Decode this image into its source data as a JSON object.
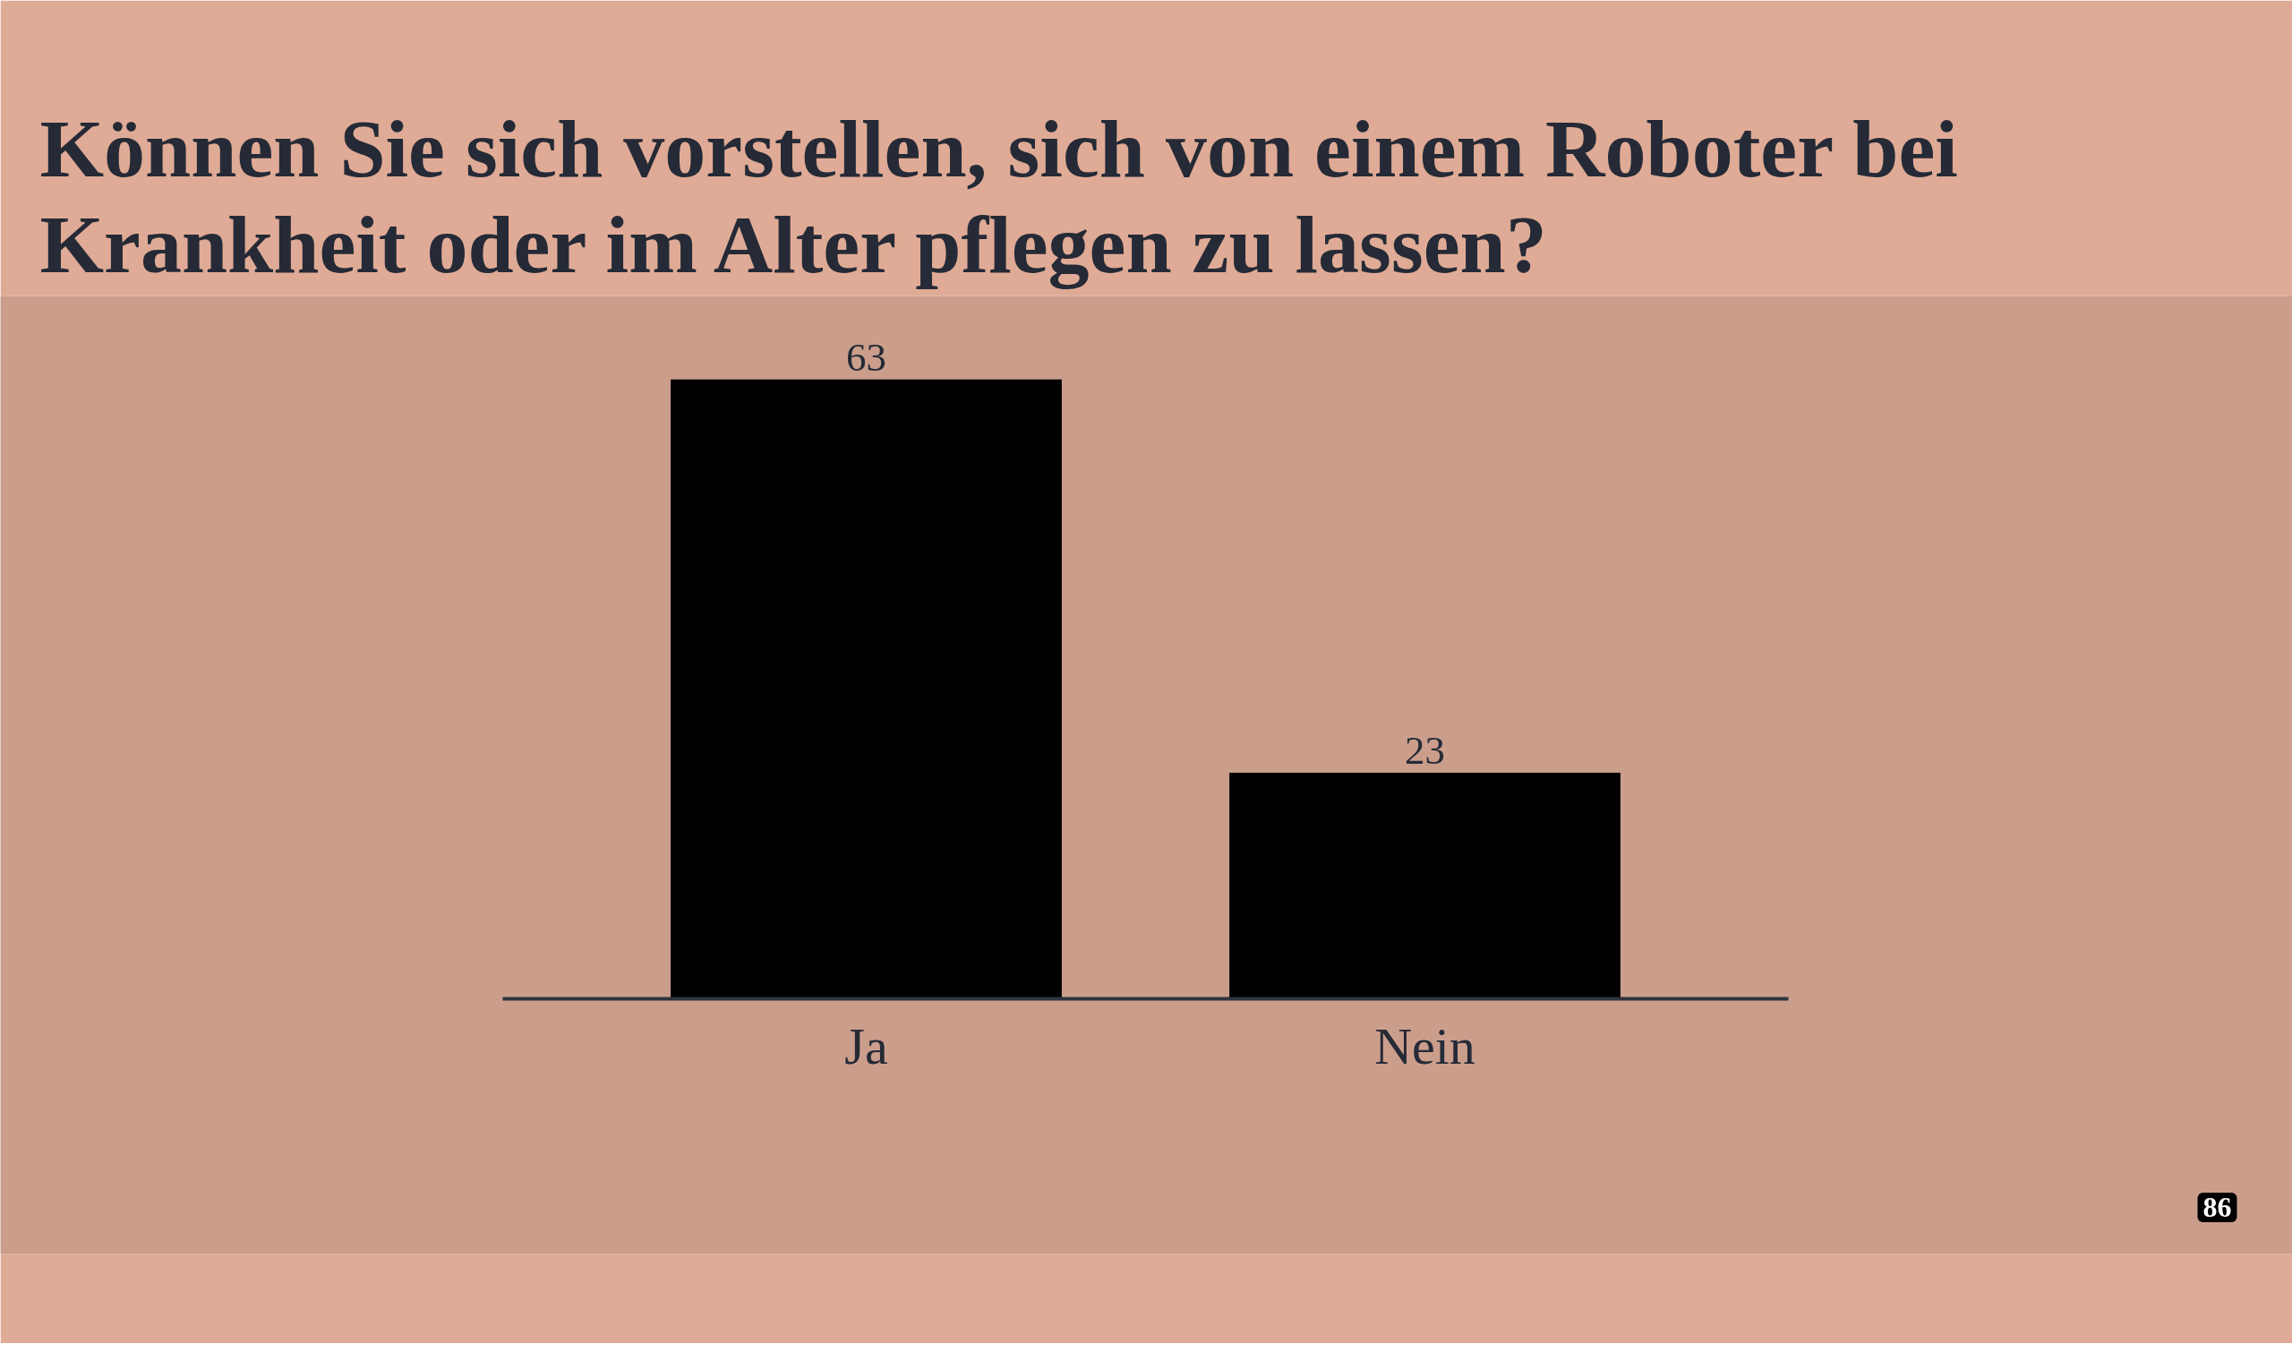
{
  "chart_data": {
    "type": "bar",
    "title": "Können Sie sich vorstellen, sich von einem Roboter bei Krankheit oder im Alter pflegen zu lassen?",
    "categories": [
      "Ja",
      "Nein"
    ],
    "values": [
      63,
      23
    ],
    "color": "#000000",
    "data_labels": true,
    "annotations": [
      "86"
    ]
  }
}
